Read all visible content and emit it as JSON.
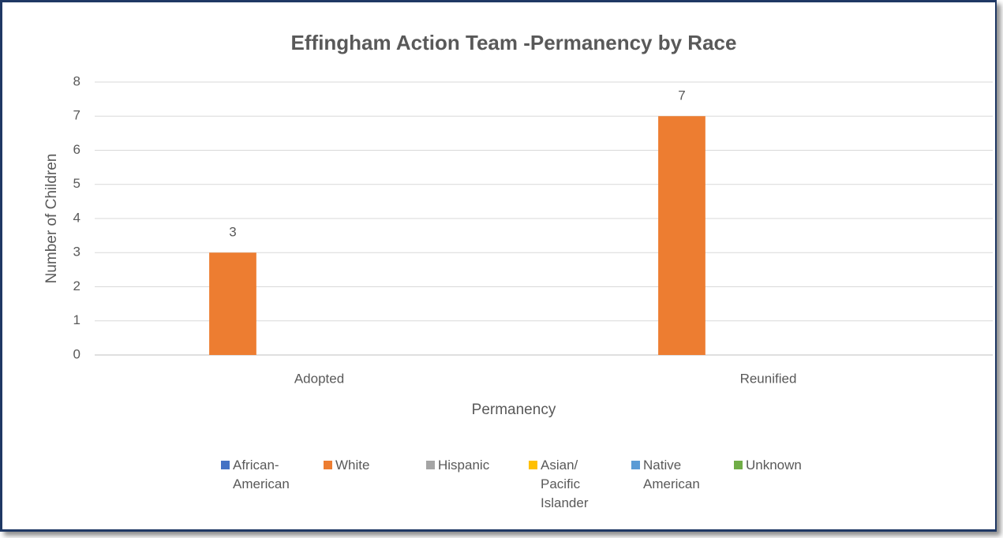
{
  "chart_data": {
    "type": "bar",
    "title": "Effingham Action Team -Permanency by Race",
    "x_label": "Permanency",
    "y_label": "Number of Children",
    "categories": [
      "Adopted",
      "Reunified"
    ],
    "series": [
      {
        "name": "African-American",
        "color": "#4472c4",
        "values": [
          0,
          0
        ]
      },
      {
        "name": "White",
        "color": "#ed7d31",
        "values": [
          3,
          7
        ],
        "data_labels": true
      },
      {
        "name": "Hispanic",
        "color": "#a5a5a5",
        "values": [
          0,
          0
        ]
      },
      {
        "name": "Asian/ Pacific Islander",
        "color": "#ffc000",
        "values": [
          0,
          0
        ]
      },
      {
        "name": "Native American",
        "color": "#5b9bd5",
        "values": [
          0,
          0
        ]
      },
      {
        "name": "Unknown",
        "color": "#70ad47",
        "values": [
          0,
          0
        ]
      }
    ],
    "ylim": [
      0,
      8
    ],
    "yticks": [
      0,
      1,
      2,
      3,
      4,
      5,
      6,
      7,
      8
    ],
    "grid": true,
    "legend": "bottom"
  }
}
